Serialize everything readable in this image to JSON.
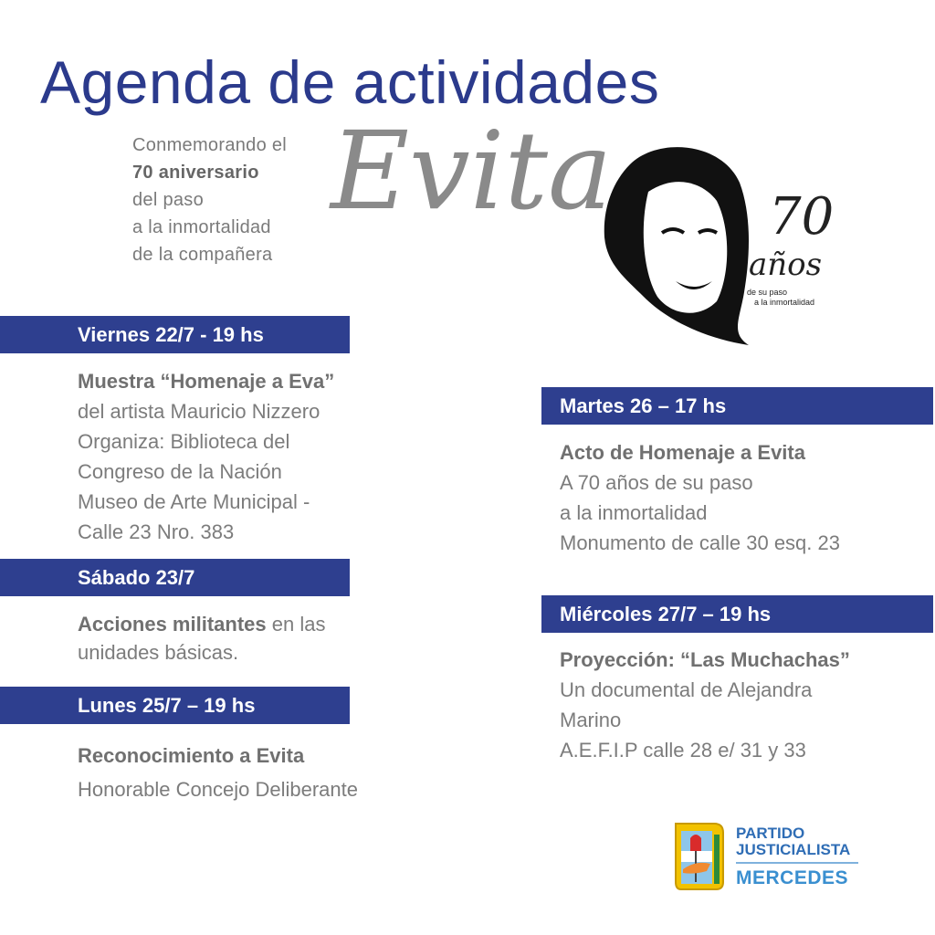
{
  "title": "Agenda de actividades",
  "subtitle": {
    "line1": "Conmemorando el",
    "line2": "70 aniversario",
    "line3": "del paso",
    "line4": "a la inmortalidad",
    "line5": "de la compañera"
  },
  "script_name": "Evita",
  "badge": {
    "number": "70",
    "word": "años",
    "line1": "de su paso",
    "line2": "a la inmortalidad"
  },
  "events": [
    {
      "header": "Viernes 22/7 - 19 hs",
      "bold": "Muestra “Homenaje a Eva”",
      "lines": [
        "del artista Mauricio Nizzero",
        "Organiza: Biblioteca del",
        "Congreso de la Nación",
        "Museo de Arte Municipal -",
        "Calle 23 Nro. 383"
      ]
    },
    {
      "header": "Sábado 23/7",
      "bold": "Acciones militantes",
      "after_bold": " en las",
      "lines": [
        "unidades básicas."
      ]
    },
    {
      "header": "Lunes 25/7 – 19 hs",
      "bold": "Reconocimiento a Evita",
      "lines": [
        "Honorable Concejo Deliberante"
      ]
    },
    {
      "header": "Martes 26 – 17 hs",
      "bold": "Acto de Homenaje a Evita",
      "lines": [
        "A 70 años de su paso",
        "a la inmortalidad",
        "Monumento de calle 30 esq. 23"
      ]
    },
    {
      "header": "Miércoles 27/7 – 19 hs",
      "bold": "Proyección: “Las Muchachas”",
      "lines": [
        "Un documental de Alejandra",
        "Marino",
        "A.E.F.I.P calle 28 e/ 31 y 33"
      ]
    }
  ],
  "logo": {
    "line1": "PARTIDO",
    "line2": "JUSTICIALISTA",
    "line3": "MERCEDES"
  },
  "colors": {
    "primary": "#2e3f8f",
    "text": "#7c7c7c",
    "logo_blue": "#2f6db5"
  }
}
